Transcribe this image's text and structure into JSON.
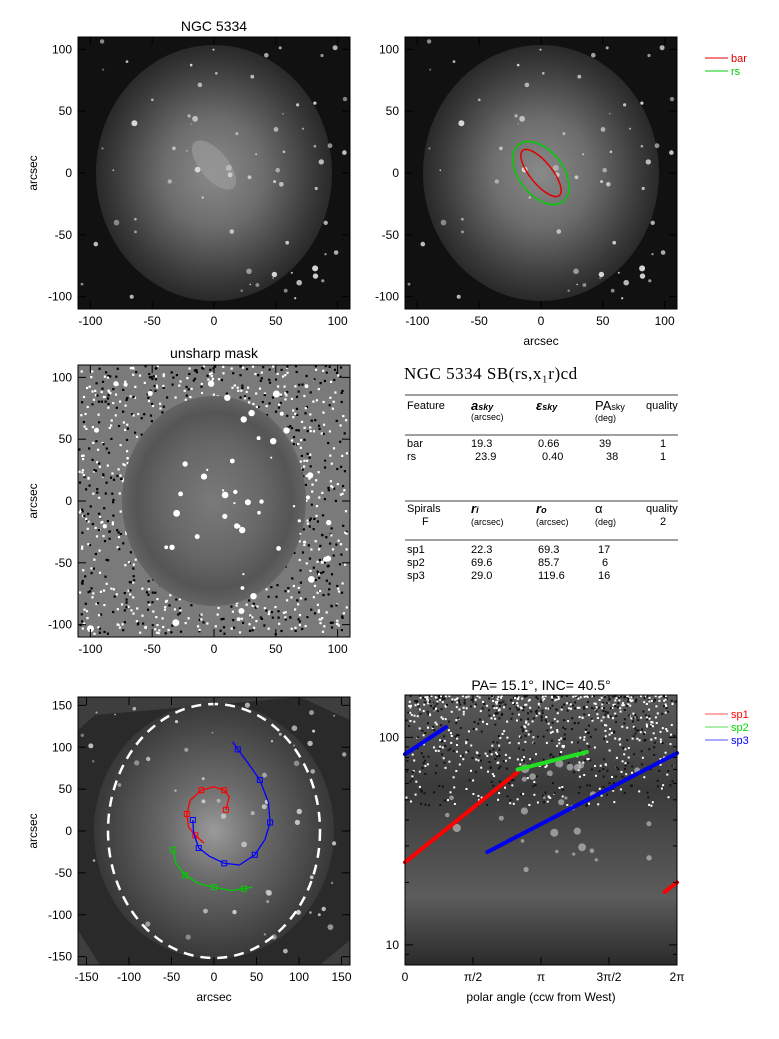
{
  "panels": {
    "p1": {
      "title": "NGC 5334",
      "ylabel": "arcsec",
      "xticks": [
        "-100",
        "-50",
        "0",
        "50",
        "100"
      ],
      "yticks": [
        "100",
        "50",
        "0",
        "-50",
        "-100"
      ]
    },
    "p2": {
      "xlabel": "arcsec",
      "xticks": [
        "-100",
        "-50",
        "0",
        "50",
        "100"
      ],
      "yticks": [
        "100",
        "50",
        "0",
        "-50",
        "-100"
      ],
      "legend": [
        {
          "label": "bar",
          "color": "#ff0000"
        },
        {
          "label": "rs",
          "color": "#00cc00"
        }
      ]
    },
    "p3": {
      "title": "unsharp mask",
      "ylabel": "arcsec",
      "xticks": [
        "-100",
        "-50",
        "0",
        "50",
        "100"
      ],
      "yticks": [
        "100",
        "50",
        "0",
        "-50",
        "-100"
      ]
    },
    "p5": {
      "xlabel": "arcsec",
      "ylabel": "arcsec",
      "xticks": [
        "-150",
        "-100",
        "-50",
        "0",
        "50",
        "100",
        "150"
      ],
      "yticks": [
        "150",
        "100",
        "50",
        "0",
        "-50",
        "-100",
        "-150"
      ]
    },
    "p6": {
      "title": "PA= 15.1°, INC= 40.5°",
      "xlabel": "polar angle (ccw from West)",
      "xticks": [
        "0",
        "π/2",
        "π",
        "3π/2",
        "2π"
      ],
      "yticks": [
        "100",
        "10"
      ],
      "legend": [
        {
          "label": "sp1",
          "color": "#ff0000"
        },
        {
          "label": "sp2",
          "color": "#00dd00"
        },
        {
          "label": "sp3",
          "color": "#0000ff"
        }
      ]
    }
  },
  "table": {
    "title": "NGC 5334  SB(rs,x₁r)cd",
    "features_header": {
      "c1": "Feature",
      "c2": "a",
      "c2sub": "sky",
      "c2u": "(arcsec)",
      "c3": "ε",
      "c3sub": "sky",
      "c4": "PA",
      "c4sub": "sky",
      "c4u": "(deg)",
      "c5": "quality"
    },
    "features": [
      {
        "name": "bar",
        "a": "19.3",
        "eps": "0.66",
        "pa": "39",
        "q": "1"
      },
      {
        "name": "rs",
        "a": "23.9",
        "eps": "0.40",
        "pa": "38",
        "q": "1"
      }
    ],
    "spirals_header": {
      "c1": "Spirals",
      "c1b": "F",
      "c2": "r",
      "c2sub": "i",
      "c2u": "(arcsec)",
      "c3": "r",
      "c3sub": "o",
      "c3u": "(arcsec)",
      "c4": "α",
      "c4u": "(deg)",
      "c5": "quality",
      "c5b": "2"
    },
    "spirals": [
      {
        "name": "sp1",
        "ri": "22.3",
        "ro": "69.3",
        "alpha": "17"
      },
      {
        "name": "sp2",
        "ri": "69.6",
        "ro": "85.7",
        "alpha": "6"
      },
      {
        "name": "sp3",
        "ri": "29.0",
        "ro": "119.6",
        "alpha": "16"
      }
    ]
  },
  "chart_data": [
    {
      "type": "heatmap",
      "title": "NGC 5334",
      "ylabel": "arcsec",
      "xlim": [
        -110,
        110
      ],
      "ylim": [
        -110,
        110
      ]
    },
    {
      "type": "heatmap",
      "xlabel": "arcsec",
      "xlim": [
        -110,
        110
      ],
      "ylim": [
        -110,
        110
      ],
      "overlays": [
        {
          "name": "bar",
          "a": 19.3,
          "eps": 0.66,
          "pa": 39
        },
        {
          "name": "rs",
          "a": 23.9,
          "eps": 0.4,
          "pa": 38
        }
      ]
    },
    {
      "type": "heatmap",
      "title": "unsharp mask",
      "ylabel": "arcsec",
      "xlim": [
        -110,
        110
      ],
      "ylim": [
        -110,
        110
      ]
    },
    {
      "type": "table",
      "title": "NGC 5334  SB(rs,x₁r)cd"
    },
    {
      "type": "heatmap",
      "xlabel": "arcsec",
      "ylabel": "arcsec",
      "xlim": [
        -160,
        160
      ],
      "ylim": [
        -160,
        160
      ],
      "ellipse_semi_axes": [
        125,
        150
      ],
      "spirals": [
        {
          "name": "sp1",
          "ri": 22.3,
          "ro": 69.3
        },
        {
          "name": "sp2",
          "ri": 69.6,
          "ro": 85.7
        },
        {
          "name": "sp3",
          "ri": 29.0,
          "ro": 119.6
        }
      ]
    },
    {
      "type": "line",
      "title": "PA= 15.1°, INC= 40.5°",
      "xlabel": "polar angle (ccw from West)",
      "xlim": [
        0,
        6.2832
      ],
      "ylim": [
        8,
        160
      ],
      "yscale": "log",
      "series": [
        {
          "name": "sp1",
          "segments": [
            [
              [
                0,
                25
              ],
              [
                2.6,
                68
              ]
            ],
            [
              [
                6.0,
                18
              ],
              [
                6.2832,
                20
              ]
            ]
          ]
        },
        {
          "name": "sp2",
          "segments": [
            [
              [
                2.6,
                70
              ],
              [
                4.2,
                85
              ]
            ]
          ]
        },
        {
          "name": "sp3",
          "segments": [
            [
              [
                0,
                83
              ],
              [
                0.95,
                112
              ]
            ],
            [
              [
                1.9,
                28
              ],
              [
                6.2832,
                84
              ]
            ]
          ]
        }
      ]
    }
  ]
}
